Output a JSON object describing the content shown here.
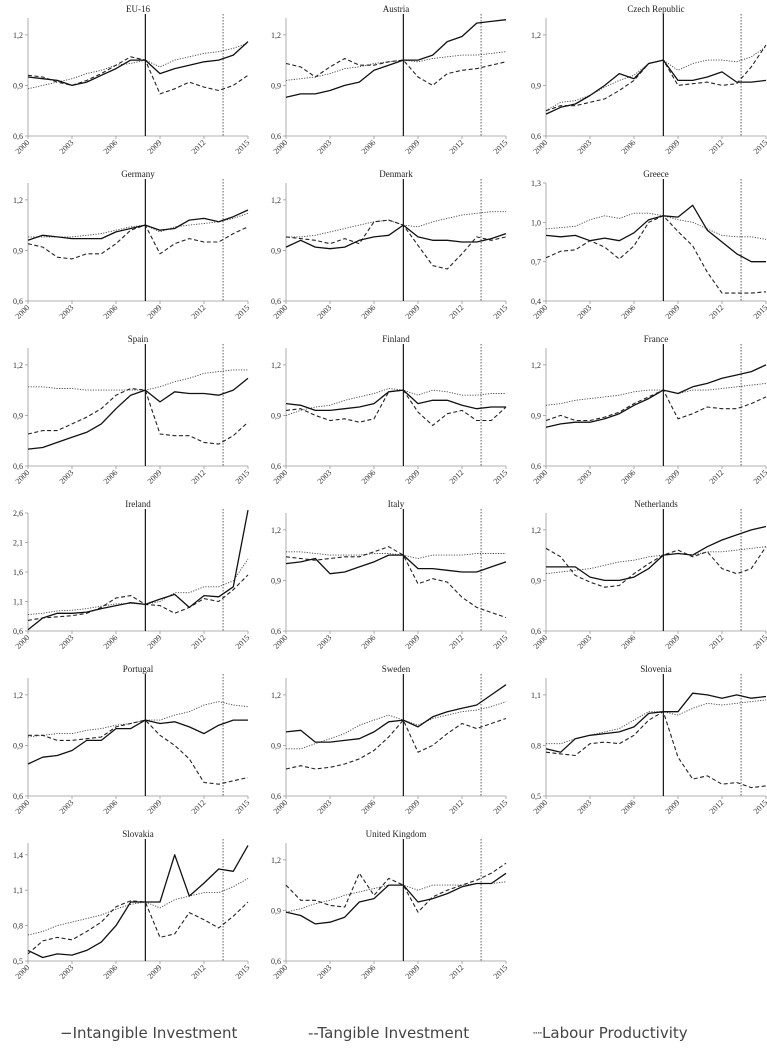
{
  "chart_data": {
    "type": "line",
    "x": [
      2000,
      2001,
      2002,
      2003,
      2004,
      2005,
      2006,
      2007,
      2008,
      2009,
      2010,
      2011,
      2012,
      2013,
      2014,
      2015
    ],
    "x_ticks": [
      "2000",
      "2003",
      "2006",
      "2009",
      "2012",
      "2015"
    ],
    "solid_vline": 2008,
    "dotted_vline": 2013.3,
    "legend": [
      "−Intangible Investment",
      "‐‐Tangible Investment",
      "┈Labour Productivity"
    ],
    "series_styles": {
      "intangible": "solid",
      "tangible": "dashed",
      "productivity": "dotted"
    },
    "panels": [
      {
        "title": "EU-16",
        "ylim": [
          0.6,
          1.3
        ],
        "yticks": [
          "0,6",
          "0,9",
          "1,2"
        ],
        "intangible": [
          0.95,
          0.94,
          0.93,
          0.9,
          0.92,
          0.96,
          1.0,
          1.05,
          1.05,
          0.97,
          1.0,
          1.02,
          1.04,
          1.05,
          1.08,
          1.16
        ],
        "tangible": [
          0.96,
          0.95,
          0.92,
          0.9,
          0.93,
          0.97,
          1.02,
          1.07,
          1.05,
          0.85,
          0.88,
          0.92,
          0.89,
          0.87,
          0.9,
          0.96
        ],
        "productivity": [
          0.88,
          0.9,
          0.92,
          0.94,
          0.97,
          0.99,
          1.02,
          1.03,
          1.05,
          1.01,
          1.05,
          1.07,
          1.09,
          1.1,
          1.12,
          1.15
        ]
      },
      {
        "title": "Austria",
        "ylim": [
          0.6,
          1.3
        ],
        "yticks": [
          "0,6",
          "0,9",
          "1,2"
        ],
        "intangible": [
          0.83,
          0.85,
          0.85,
          0.87,
          0.9,
          0.92,
          0.99,
          1.02,
          1.05,
          1.05,
          1.08,
          1.16,
          1.19,
          1.27,
          1.28,
          1.29
        ],
        "tangible": [
          1.03,
          1.01,
          0.95,
          1.01,
          1.06,
          1.02,
          1.02,
          1.04,
          1.05,
          0.95,
          0.9,
          0.97,
          0.99,
          1.0,
          1.02,
          1.04
        ],
        "productivity": [
          0.93,
          0.94,
          0.95,
          0.97,
          1.0,
          1.01,
          1.03,
          1.04,
          1.05,
          1.04,
          1.06,
          1.07,
          1.08,
          1.08,
          1.09,
          1.1
        ]
      },
      {
        "title": "Czech Republic",
        "ylim": [
          0.6,
          1.3
        ],
        "yticks": [
          "0,6",
          "0,9",
          "1,2"
        ],
        "intangible": [
          0.73,
          0.77,
          0.79,
          0.84,
          0.9,
          0.97,
          0.94,
          1.03,
          1.05,
          0.93,
          0.93,
          0.95,
          0.98,
          0.92,
          0.92,
          0.93
        ],
        "tangible": [
          0.75,
          0.78,
          0.78,
          0.8,
          0.82,
          0.87,
          0.93,
          1.03,
          1.05,
          0.9,
          0.91,
          0.92,
          0.9,
          0.91,
          1.01,
          1.14
        ],
        "productivity": [
          0.75,
          0.8,
          0.81,
          0.84,
          0.89,
          0.93,
          0.96,
          1.03,
          1.05,
          0.99,
          1.03,
          1.05,
          1.05,
          1.04,
          1.07,
          1.13
        ]
      },
      {
        "title": "Germany",
        "ylim": [
          0.6,
          1.3
        ],
        "yticks": [
          "0,6",
          "0,9",
          "1,2"
        ],
        "intangible": [
          0.96,
          0.99,
          0.98,
          0.97,
          0.97,
          0.97,
          1.01,
          1.03,
          1.05,
          1.02,
          1.03,
          1.08,
          1.09,
          1.07,
          1.1,
          1.14
        ],
        "tangible": [
          0.94,
          0.92,
          0.86,
          0.85,
          0.88,
          0.88,
          0.94,
          1.02,
          1.05,
          0.88,
          0.94,
          0.97,
          0.95,
          0.95,
          1.0,
          1.04
        ],
        "productivity": [
          0.98,
          0.98,
          0.98,
          0.98,
          0.99,
          1.0,
          1.02,
          1.04,
          1.05,
          1.01,
          1.04,
          1.05,
          1.06,
          1.07,
          1.09,
          1.12
        ]
      },
      {
        "title": "Denmark",
        "ylim": [
          0.6,
          1.3
        ],
        "yticks": [
          "0,6",
          "0,9",
          "1,2"
        ],
        "intangible": [
          0.92,
          0.96,
          0.92,
          0.91,
          0.92,
          0.96,
          0.98,
          0.99,
          1.05,
          0.98,
          0.96,
          0.96,
          0.95,
          0.95,
          0.97,
          1.0
        ],
        "tangible": [
          0.98,
          0.97,
          0.96,
          0.94,
          0.97,
          0.94,
          1.07,
          1.08,
          1.05,
          0.93,
          0.81,
          0.79,
          0.88,
          0.98,
          0.96,
          0.98
        ],
        "productivity": [
          0.98,
          0.98,
          0.99,
          1.01,
          1.03,
          1.05,
          1.07,
          1.08,
          1.05,
          1.04,
          1.07,
          1.09,
          1.11,
          1.12,
          1.13,
          1.13
        ]
      },
      {
        "title": "Greece",
        "ylim": [
          0.4,
          1.3
        ],
        "yticks": [
          "0,4",
          "0,7",
          "1,0",
          "1,3"
        ],
        "intangible": [
          0.9,
          0.89,
          0.9,
          0.86,
          0.88,
          0.86,
          0.92,
          1.02,
          1.05,
          1.04,
          1.13,
          0.94,
          0.85,
          0.76,
          0.7,
          0.7
        ],
        "tangible": [
          0.73,
          0.78,
          0.79,
          0.86,
          0.81,
          0.72,
          0.82,
          1.0,
          1.05,
          0.93,
          0.82,
          0.62,
          0.46,
          0.46,
          0.46,
          0.47
        ],
        "productivity": [
          0.95,
          0.96,
          0.97,
          1.02,
          1.05,
          1.03,
          1.07,
          1.07,
          1.05,
          1.02,
          1.0,
          0.95,
          0.9,
          0.89,
          0.89,
          0.87
        ]
      },
      {
        "title": "Spain",
        "ylim": [
          0.6,
          1.3
        ],
        "yticks": [
          "0,6",
          "0,9",
          "1,2"
        ],
        "intangible": [
          0.7,
          0.71,
          0.74,
          0.77,
          0.8,
          0.85,
          0.94,
          1.02,
          1.05,
          0.98,
          1.04,
          1.03,
          1.03,
          1.02,
          1.05,
          1.12
        ],
        "tangible": [
          0.79,
          0.81,
          0.81,
          0.85,
          0.89,
          0.94,
          1.02,
          1.06,
          1.05,
          0.79,
          0.78,
          0.78,
          0.74,
          0.73,
          0.78,
          0.86
        ],
        "productivity": [
          1.07,
          1.07,
          1.06,
          1.06,
          1.05,
          1.05,
          1.05,
          1.05,
          1.05,
          1.07,
          1.1,
          1.12,
          1.15,
          1.16,
          1.17,
          1.17
        ]
      },
      {
        "title": "Finland",
        "ylim": [
          0.6,
          1.3
        ],
        "yticks": [
          "0,6",
          "0,9",
          "1,2"
        ],
        "intangible": [
          0.97,
          0.96,
          0.93,
          0.93,
          0.94,
          0.95,
          0.97,
          1.04,
          1.05,
          0.97,
          0.99,
          0.99,
          0.96,
          0.94,
          0.95,
          0.95
        ],
        "tangible": [
          0.93,
          0.94,
          0.9,
          0.87,
          0.88,
          0.86,
          0.88,
          1.04,
          1.05,
          0.92,
          0.84,
          0.91,
          0.93,
          0.87,
          0.87,
          0.95
        ],
        "productivity": [
          0.9,
          0.93,
          0.95,
          0.96,
          0.99,
          1.01,
          1.03,
          1.06,
          1.05,
          1.02,
          1.05,
          1.04,
          1.02,
          1.02,
          1.03,
          1.03
        ]
      },
      {
        "title": "France",
        "ylim": [
          0.6,
          1.3
        ],
        "yticks": [
          "0,6",
          "0,9",
          "1,2"
        ],
        "intangible": [
          0.83,
          0.85,
          0.86,
          0.86,
          0.88,
          0.91,
          0.96,
          1.0,
          1.05,
          1.03,
          1.07,
          1.09,
          1.12,
          1.14,
          1.16,
          1.2
        ],
        "tangible": [
          0.87,
          0.9,
          0.87,
          0.87,
          0.89,
          0.92,
          0.97,
          1.01,
          1.05,
          0.88,
          0.91,
          0.95,
          0.94,
          0.94,
          0.97,
          1.01
        ],
        "productivity": [
          0.96,
          0.97,
          0.99,
          1.0,
          1.01,
          1.02,
          1.04,
          1.05,
          1.05,
          1.03,
          1.05,
          1.05,
          1.06,
          1.07,
          1.08,
          1.09
        ]
      },
      {
        "title": "Ireland",
        "ylim": [
          0.6,
          2.6
        ],
        "yticks": [
          "0,6",
          "1,1",
          "1,6",
          "2,1",
          "2,6"
        ],
        "intangible": [
          0.62,
          0.82,
          0.9,
          0.9,
          0.92,
          0.98,
          1.03,
          1.08,
          1.05,
          1.14,
          1.22,
          1.0,
          1.2,
          1.18,
          1.35,
          2.65
        ],
        "tangible": [
          0.78,
          0.82,
          0.84,
          0.86,
          0.9,
          1.0,
          1.16,
          1.2,
          1.05,
          1.03,
          0.9,
          1.0,
          1.15,
          1.1,
          1.3,
          1.55
        ],
        "productivity": [
          0.88,
          0.9,
          0.94,
          0.95,
          0.98,
          1.02,
          1.06,
          1.07,
          1.05,
          1.1,
          1.25,
          1.25,
          1.35,
          1.35,
          1.45,
          1.82
        ]
      },
      {
        "title": "Italy",
        "ylim": [
          0.6,
          1.3
        ],
        "yticks": [
          "0,6",
          "0,9",
          "1,2"
        ],
        "intangible": [
          1.0,
          1.01,
          1.03,
          0.94,
          0.95,
          0.98,
          1.01,
          1.05,
          1.05,
          0.97,
          0.97,
          0.96,
          0.95,
          0.95,
          0.98,
          1.01
        ],
        "tangible": [
          1.04,
          1.03,
          1.02,
          1.03,
          1.04,
          1.04,
          1.07,
          1.1,
          1.05,
          0.88,
          0.91,
          0.89,
          0.8,
          0.74,
          0.71,
          0.68
        ],
        "productivity": [
          1.07,
          1.07,
          1.06,
          1.05,
          1.05,
          1.05,
          1.06,
          1.06,
          1.05,
          1.03,
          1.05,
          1.05,
          1.05,
          1.06,
          1.06,
          1.06
        ]
      },
      {
        "title": "Netherlands",
        "ylim": [
          0.6,
          1.3
        ],
        "yticks": [
          "0,6",
          "0,9",
          "1,2"
        ],
        "intangible": [
          0.98,
          0.98,
          0.98,
          0.92,
          0.9,
          0.9,
          0.92,
          0.97,
          1.05,
          1.06,
          1.05,
          1.1,
          1.14,
          1.17,
          1.2,
          1.22
        ],
        "tangible": [
          1.09,
          1.04,
          0.93,
          0.89,
          0.86,
          0.87,
          0.94,
          1.0,
          1.05,
          1.08,
          1.04,
          1.07,
          0.97,
          0.94,
          0.97,
          1.1
        ],
        "productivity": [
          0.94,
          0.95,
          0.96,
          0.97,
          0.99,
          1.01,
          1.02,
          1.04,
          1.05,
          1.06,
          1.05,
          1.07,
          1.07,
          1.08,
          1.09,
          1.1
        ]
      },
      {
        "title": "Portugal",
        "ylim": [
          0.6,
          1.3
        ],
        "yticks": [
          "0,6",
          "0,9",
          "1,2"
        ],
        "intangible": [
          0.79,
          0.83,
          0.84,
          0.87,
          0.93,
          0.93,
          1.0,
          1.0,
          1.05,
          1.03,
          1.04,
          1.01,
          0.97,
          1.02,
          1.05,
          1.05
        ],
        "tangible": [
          0.96,
          0.96,
          0.93,
          0.93,
          0.94,
          0.95,
          1.01,
          1.03,
          1.05,
          0.96,
          0.9,
          0.82,
          0.68,
          0.67,
          0.69,
          0.71
        ],
        "productivity": [
          0.95,
          0.96,
          0.97,
          0.97,
          0.99,
          1.0,
          1.02,
          1.03,
          1.05,
          1.05,
          1.08,
          1.1,
          1.14,
          1.16,
          1.14,
          1.13
        ]
      },
      {
        "title": "Sweden",
        "ylim": [
          0.6,
          1.3
        ],
        "yticks": [
          "0,6",
          "0,9",
          "1,2"
        ],
        "intangible": [
          0.98,
          0.99,
          0.92,
          0.92,
          0.93,
          0.94,
          0.98,
          1.04,
          1.05,
          1.01,
          1.07,
          1.1,
          1.12,
          1.14,
          1.2,
          1.26
        ],
        "tangible": [
          0.76,
          0.78,
          0.76,
          0.77,
          0.79,
          0.82,
          0.87,
          0.95,
          1.05,
          0.86,
          0.9,
          0.97,
          1.03,
          1.0,
          1.03,
          1.06
        ],
        "productivity": [
          0.88,
          0.88,
          0.91,
          0.94,
          0.97,
          1.02,
          1.05,
          1.08,
          1.05,
          1.02,
          1.06,
          1.08,
          1.1,
          1.11,
          1.13,
          1.16
        ]
      },
      {
        "title": "Slovenia",
        "ylim": [
          0.5,
          1.2
        ],
        "yticks": [
          "0,5",
          "0,8",
          "1,1"
        ],
        "intangible": [
          0.78,
          0.76,
          0.84,
          0.86,
          0.87,
          0.88,
          0.91,
          0.99,
          1.0,
          1.0,
          1.11,
          1.1,
          1.08,
          1.1,
          1.08,
          1.09
        ],
        "tangible": [
          0.76,
          0.75,
          0.74,
          0.81,
          0.82,
          0.81,
          0.86,
          0.95,
          1.0,
          0.73,
          0.6,
          0.62,
          0.57,
          0.58,
          0.55,
          0.56
        ],
        "productivity": [
          0.81,
          0.81,
          0.84,
          0.86,
          0.88,
          0.9,
          0.95,
          1.0,
          1.0,
          0.98,
          1.02,
          1.05,
          1.04,
          1.05,
          1.06,
          1.07
        ]
      },
      {
        "title": "Slovakia",
        "ylim": [
          0.5,
          1.5
        ],
        "yticks": [
          "0,5",
          "0,8",
          "1,1",
          "1,4"
        ],
        "intangible": [
          0.59,
          0.53,
          0.56,
          0.55,
          0.59,
          0.66,
          0.8,
          1.0,
          1.0,
          1.0,
          1.4,
          1.05,
          1.16,
          1.28,
          1.26,
          1.48
        ],
        "tangible": [
          0.56,
          0.67,
          0.7,
          0.68,
          0.75,
          0.83,
          0.96,
          1.01,
          1.0,
          0.7,
          0.73,
          0.91,
          0.85,
          0.78,
          0.88,
          1.0
        ],
        "productivity": [
          0.72,
          0.75,
          0.8,
          0.83,
          0.86,
          0.89,
          0.94,
          0.98,
          1.0,
          0.95,
          1.02,
          1.05,
          1.08,
          1.08,
          1.13,
          1.2
        ]
      },
      {
        "title": "United Kingdom",
        "ylim": [
          0.6,
          1.3
        ],
        "yticks": [
          "0,6",
          "0,9",
          "1,2"
        ],
        "intangible": [
          0.89,
          0.87,
          0.82,
          0.83,
          0.86,
          0.95,
          0.97,
          1.05,
          1.05,
          0.95,
          0.97,
          1.0,
          1.04,
          1.06,
          1.06,
          1.12
        ],
        "tangible": [
          1.05,
          0.96,
          0.96,
          0.93,
          0.92,
          1.12,
          0.99,
          1.09,
          1.05,
          0.89,
          0.98,
          1.02,
          1.05,
          1.08,
          1.12,
          1.18
        ],
        "productivity": [
          0.89,
          0.91,
          0.94,
          0.96,
          0.99,
          1.01,
          1.03,
          1.05,
          1.05,
          1.02,
          1.05,
          1.05,
          1.05,
          1.06,
          1.06,
          1.07
        ]
      }
    ]
  }
}
